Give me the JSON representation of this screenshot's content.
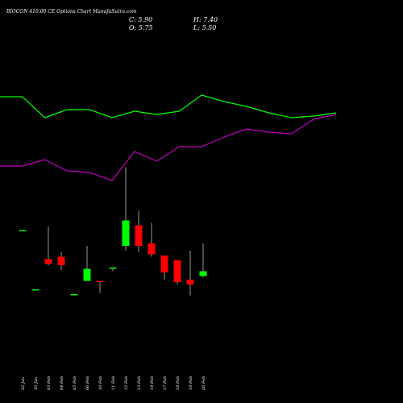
{
  "chart_data": {
    "type": "candlestick",
    "title": "BIOCON 410.00 CE Options Chart MunafaSutra.com",
    "readout": {
      "C": "5.90",
      "H": "7.40",
      "O": "5.75",
      "L": "5.50"
    },
    "colors": {
      "background": "#000000",
      "up": "#00ff00",
      "down": "#ff0000",
      "upper_line": "#00ff00",
      "lower_line": "#c000c0",
      "text": "#ffffff"
    },
    "x_tick_labels": [
      "22 Jan",
      "30 Jan",
      "03 Feb",
      "04 Feb",
      "05 Feb",
      "06 Feb",
      "10 Feb",
      "11 Feb",
      "12 Feb",
      "13 Feb",
      "14 Feb",
      "17 Feb",
      "18 Feb",
      "19 Feb",
      "20 Feb"
    ],
    "candles": [
      {
        "o": 10.3,
        "h": 10.3,
        "l": 10.3,
        "c": 10.3
      },
      {
        "o": 5.4,
        "h": 5.4,
        "l": 5.4,
        "c": 5.4
      },
      {
        "o": 7.9,
        "h": 10.6,
        "l": 7.4,
        "c": 7.5
      },
      {
        "o": 8.1,
        "h": 8.5,
        "l": 7.0,
        "c": 7.4
      },
      {
        "o": 5.0,
        "h": 5.0,
        "l": 5.0,
        "c": 5.0
      },
      {
        "o": 6.1,
        "h": 9.0,
        "l": 6.1,
        "c": 7.1
      },
      {
        "o": 6.1,
        "h": 6.1,
        "l": 5.1,
        "c": 6.0
      },
      {
        "o": 7.1,
        "h": 7.2,
        "l": 6.9,
        "c": 7.2
      },
      {
        "o": 9.0,
        "h": 15.5,
        "l": 8.6,
        "c": 11.1
      },
      {
        "o": 10.7,
        "h": 11.9,
        "l": 8.5,
        "c": 9.0
      },
      {
        "o": 9.2,
        "h": 10.9,
        "l": 8.1,
        "c": 8.3
      },
      {
        "o": 8.2,
        "h": 8.2,
        "l": 6.2,
        "c": 6.8
      },
      {
        "o": 7.8,
        "h": 7.8,
        "l": 5.8,
        "c": 6.0
      },
      {
        "o": 6.2,
        "h": 8.6,
        "l": 4.9,
        "c": 5.8
      },
      {
        "o": 6.5,
        "h": 9.2,
        "l": 6.4,
        "c": 6.9
      }
    ],
    "candle_ylim": [
      0,
      16
    ],
    "upper_line": [
      10.5,
      10.5,
      9.2,
      9.7,
      9.7,
      9.2,
      9.6,
      9.4,
      9.6,
      10.6,
      10.2,
      9.9,
      9.5,
      9.2,
      9.3,
      9.5
    ],
    "lower_line": [
      6.2,
      6.2,
      6.6,
      5.9,
      5.8,
      5.3,
      7.1,
      6.5,
      7.4,
      7.4,
      8.0,
      8.5,
      8.3,
      8.2,
      9.1,
      9.4
    ],
    "line_ylim": [
      0,
      16
    ]
  }
}
